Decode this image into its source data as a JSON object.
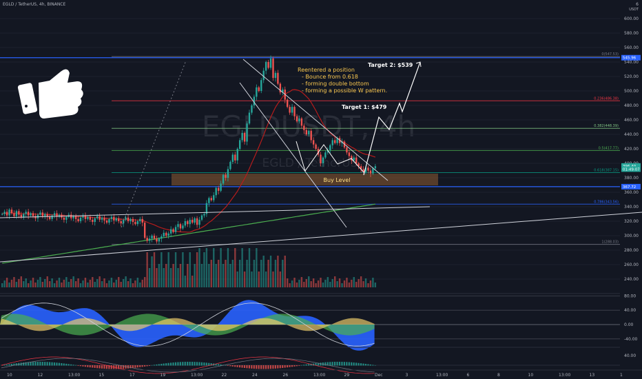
{
  "header": {
    "symbol": "EGLD / TetherUS, 4h, BINANCE"
  },
  "watermark": {
    "main": "EGLDUSDT, 4h",
    "sub": "EGLD / TetherUS"
  },
  "annotations": {
    "note_lines": [
      "Reentered a position",
      "- Bounce from 0.618",
      "- forming double bottom",
      "- forming a possible W pattern."
    ],
    "target1": "Target 1: $479",
    "target2": "Target 2: $539",
    "buy_level": "Buy Level"
  },
  "price_axis": {
    "unit": "USDT",
    "ticks": [
      600,
      580,
      560,
      540,
      520,
      500,
      480,
      460,
      440,
      420,
      400,
      380,
      360,
      340,
      320,
      300,
      280,
      260,
      240
    ],
    "top_marker": "6"
  },
  "price_tags": [
    {
      "label": "545.96",
      "value": 545.96,
      "color": "#2962ff"
    },
    {
      "label": "396.40",
      "value": 396.4,
      "color": "#26a69a"
    },
    {
      "label": "01:49:07",
      "value": 392,
      "color": "#26a69a"
    },
    {
      "label": "367.72",
      "value": 367.72,
      "color": "#2962ff"
    }
  ],
  "fib_levels": [
    {
      "label": "0(547.53)",
      "value": 547.53,
      "color": "#787b86"
    },
    {
      "label": "0.236(486.38)",
      "value": 486.38,
      "color": "#f23645"
    },
    {
      "label": "0.382(448.39)",
      "value": 448.39,
      "color": "#81c784"
    },
    {
      "label": "0.5(417.77)",
      "value": 417.77,
      "color": "#4caf50"
    },
    {
      "label": "0.618(387.15)",
      "value": 387.15,
      "color": "#089981"
    },
    {
      "label": "0.786(343.56)",
      "value": 343.56,
      "color": "#2962ff"
    },
    {
      "label": "1(288.03)",
      "value": 288.03,
      "color": "#787b86"
    }
  ],
  "horizontal_lines": [
    545.96,
    367.72
  ],
  "osc_axis": {
    "ticks": [
      80,
      40,
      0,
      -40
    ]
  },
  "macd_axis": {
    "ticks": [
      40
    ]
  },
  "time_axis": [
    "10",
    "12",
    "13:00",
    "15",
    "17",
    "19",
    "13:00",
    "22",
    "24",
    "26",
    "13:00",
    "29",
    "Dec",
    "3",
    "13:00",
    "6",
    "8",
    "10",
    "13:00",
    "13",
    "1"
  ],
  "chart_data": {
    "type": "candlestick",
    "title": "EGLD / TetherUS, 4h, BINANCE",
    "ylim": [
      228,
      612
    ],
    "key_prices": {
      "swing_high": 547.53,
      "swing_low": 288.03,
      "last": 396.4
    },
    "projection": [
      {
        "label": "Target 1",
        "value": 479
      },
      {
        "label": "Target 2",
        "value": 539
      }
    ],
    "candles": [
      330,
      333,
      328,
      336,
      331,
      327,
      334,
      329,
      325,
      330,
      333,
      328,
      331,
      327,
      324,
      329,
      332,
      327,
      330,
      326,
      323,
      328,
      331,
      326,
      329,
      325,
      322,
      326,
      329,
      324,
      327,
      323,
      320,
      325,
      328,
      323,
      326,
      322,
      319,
      324,
      327,
      322,
      325,
      321,
      318,
      323,
      326,
      321,
      324,
      320,
      317,
      322,
      325,
      320,
      323,
      319,
      316,
      320,
      323,
      318,
      297,
      293,
      296,
      300,
      296,
      292,
      296,
      299,
      304,
      300,
      303,
      309,
      305,
      312,
      316,
      310,
      314,
      320,
      316,
      322,
      318,
      324,
      315,
      322,
      328,
      330,
      345,
      352,
      349,
      356,
      366,
      362,
      372,
      384,
      380,
      392,
      402,
      412,
      404,
      420,
      432,
      442,
      430,
      455,
      470,
      480,
      492,
      505,
      500,
      515,
      528,
      540,
      532,
      545,
      518,
      525,
      510,
      498,
      502,
      488,
      478,
      470,
      478,
      465,
      458,
      462,
      452,
      446,
      440,
      445,
      432,
      426,
      420,
      412,
      400,
      408,
      415,
      418,
      425,
      432,
      428,
      435,
      428,
      430,
      422,
      415,
      410,
      404,
      408,
      400,
      396,
      392,
      388,
      394,
      390,
      386,
      393,
      396
    ]
  }
}
